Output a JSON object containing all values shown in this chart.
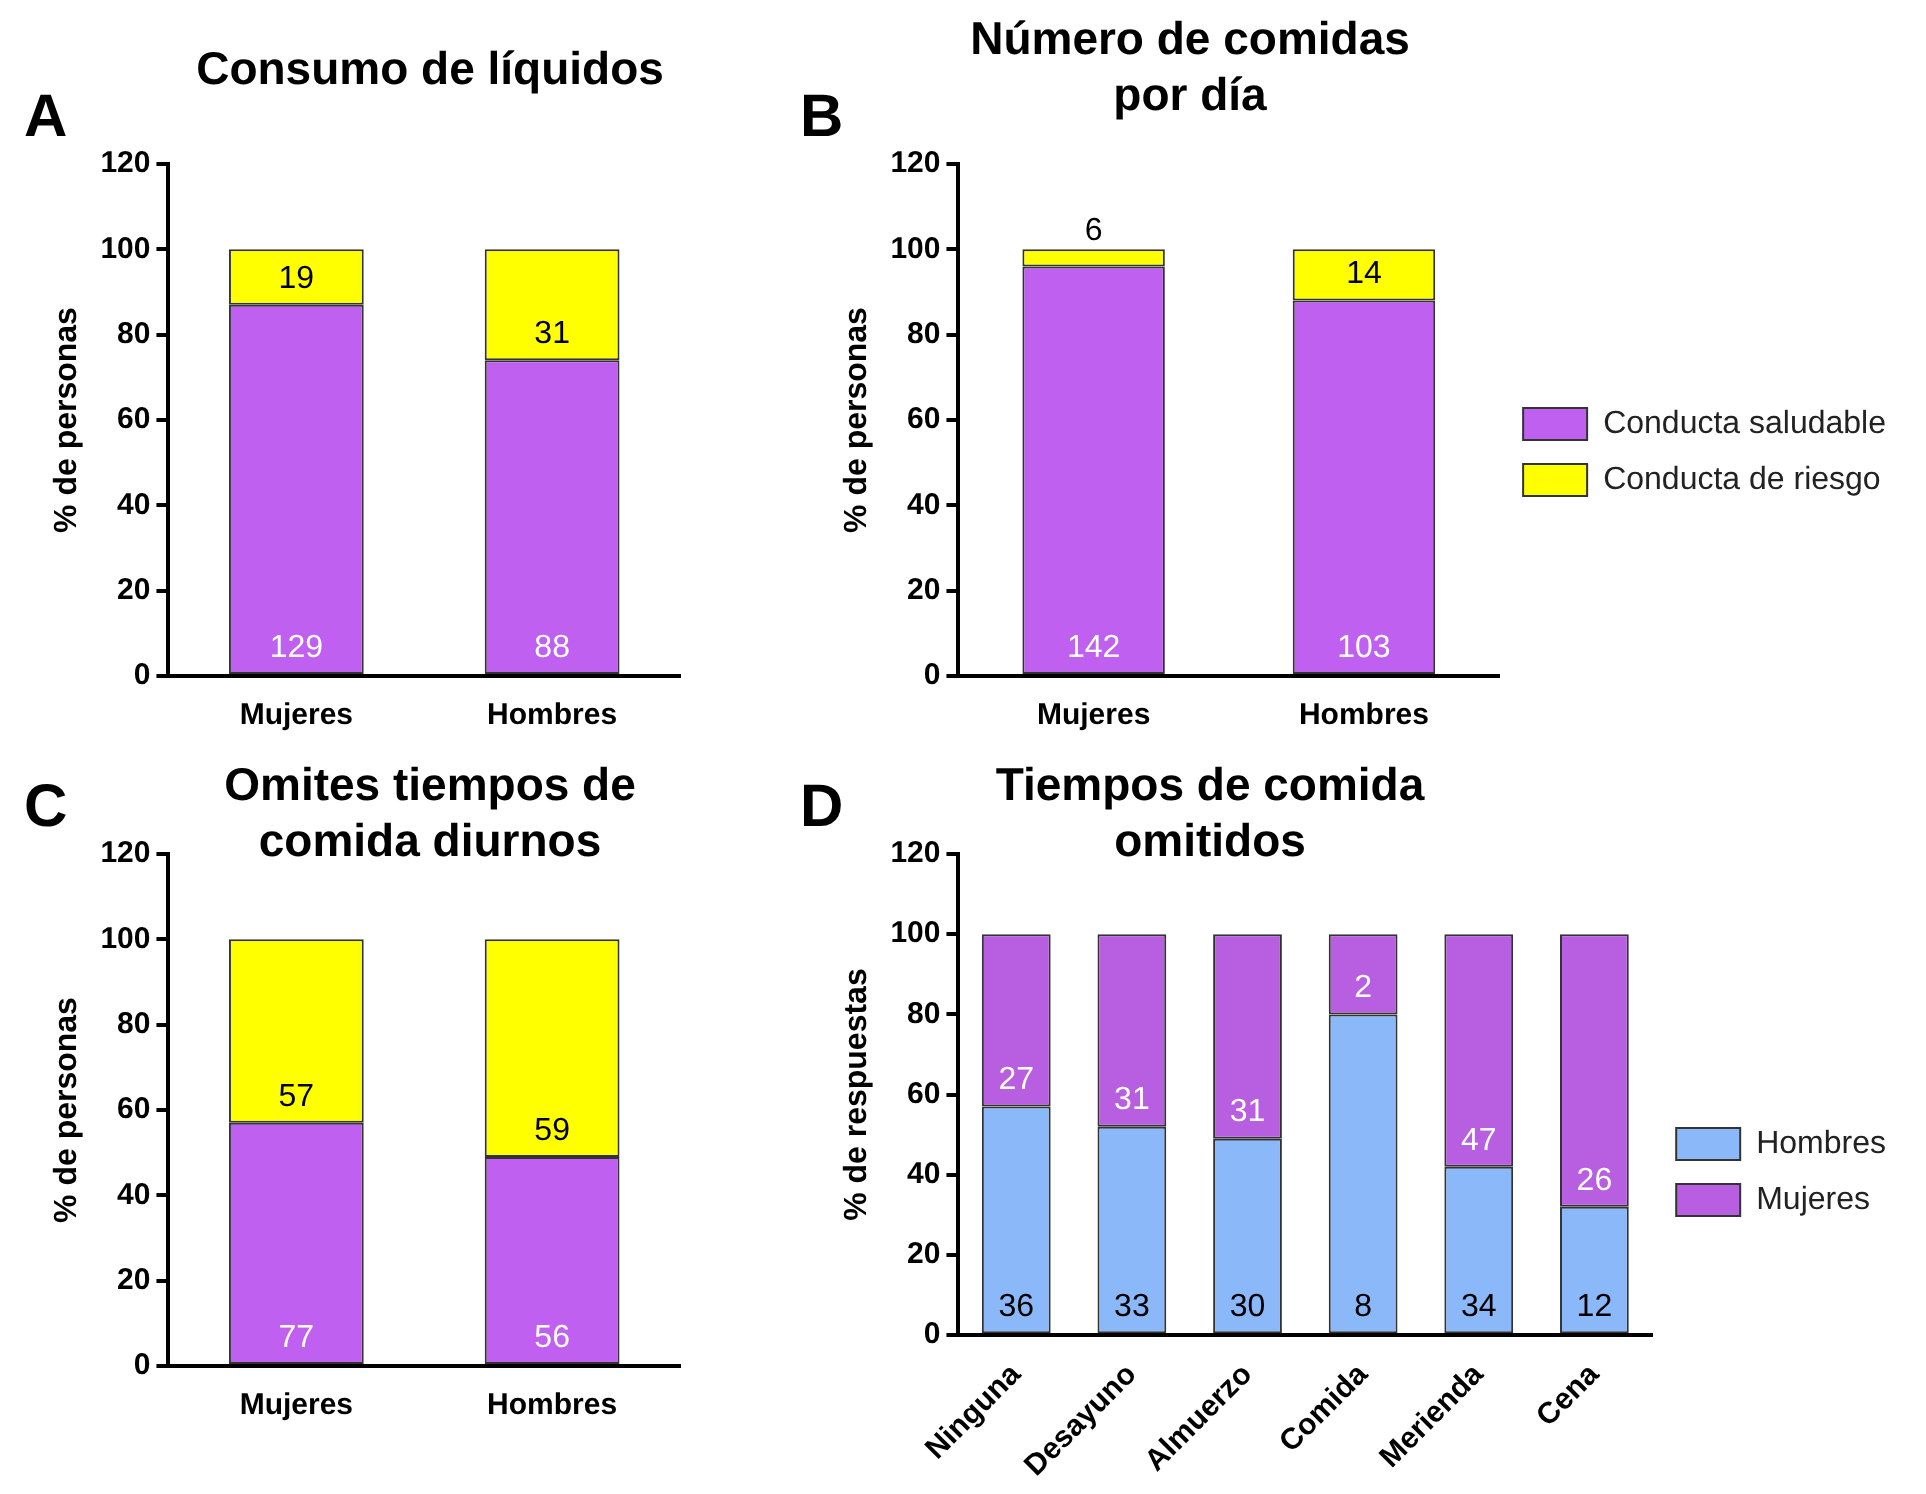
{
  "chart_data": [
    {
      "type": "bar",
      "stacked": true,
      "title": "Consumo de líquidos",
      "ylabel": "% de personas",
      "categories": [
        "Mujeres",
        "Hombres"
      ],
      "ylim": [
        0,
        120
      ],
      "yticks": [
        0,
        20,
        40,
        60,
        80,
        100,
        120
      ],
      "grid": false,
      "legend": false,
      "annotations": [
        "A",
        "129",
        "88",
        "19",
        "31"
      ],
      "series": [
        {
          "color": "#bf60f0",
          "values": [
            87,
            74
          ]
        },
        {
          "color": "#ffff00",
          "values": [
            13,
            26
          ]
        }
      ]
    },
    {
      "type": "bar",
      "stacked": true,
      "title": "Número de comidas por día",
      "ylabel": "% de personas",
      "categories": [
        "Mujeres",
        "Hombres"
      ],
      "ylim": [
        0,
        120
      ],
      "yticks": [
        0,
        20,
        40,
        60,
        80,
        100,
        120
      ],
      "grid": false,
      "legend": "right",
      "annotations": [
        "B",
        "142",
        "103",
        "6",
        "14"
      ],
      "series": [
        {
          "name": "Conducta saludable",
          "color": "#bf60f0",
          "values": [
            96,
            88
          ]
        },
        {
          "name": "Conducta de riesgo",
          "color": "#ffff00",
          "values": [
            4,
            12
          ]
        }
      ]
    },
    {
      "type": "bar",
      "stacked": true,
      "title": "Omites tiempos de comida diurnos",
      "ylabel": "% de personas",
      "categories": [
        "Mujeres",
        "Hombres"
      ],
      "ylim": [
        0,
        120
      ],
      "yticks": [
        0,
        20,
        40,
        60,
        80,
        100,
        120
      ],
      "grid": false,
      "legend": false,
      "annotations": [
        "C",
        "77",
        "56",
        "57",
        "59"
      ],
      "series": [
        {
          "color": "#bf60f0",
          "values": [
            57,
            49
          ]
        },
        {
          "color": "#ffff00",
          "values": [
            43,
            51
          ]
        }
      ]
    },
    {
      "type": "bar",
      "stacked": true,
      "title": "Tiempos de comida omitidos",
      "ylabel": "% de respuestas",
      "categories": [
        "Ninguna",
        "Desayuno",
        "Almuerzo",
        "Comida",
        "Merienda",
        "Cena"
      ],
      "ylim": [
        0,
        120
      ],
      "yticks": [
        0,
        20,
        40,
        60,
        80,
        100,
        120
      ],
      "grid": false,
      "legend": "right",
      "annotations": [
        "D",
        "36",
        "33",
        "30",
        "8",
        "34",
        "12",
        "27",
        "31",
        "31",
        "2",
        "47",
        "26"
      ],
      "series": [
        {
          "name": "Hombres",
          "color": "#8ab8f8",
          "values": [
            57,
            52,
            49,
            80,
            42,
            32
          ]
        },
        {
          "name": "Mujeres",
          "color": "#b85ee0",
          "values": [
            43,
            48,
            51,
            20,
            58,
            68
          ]
        }
      ]
    }
  ]
}
